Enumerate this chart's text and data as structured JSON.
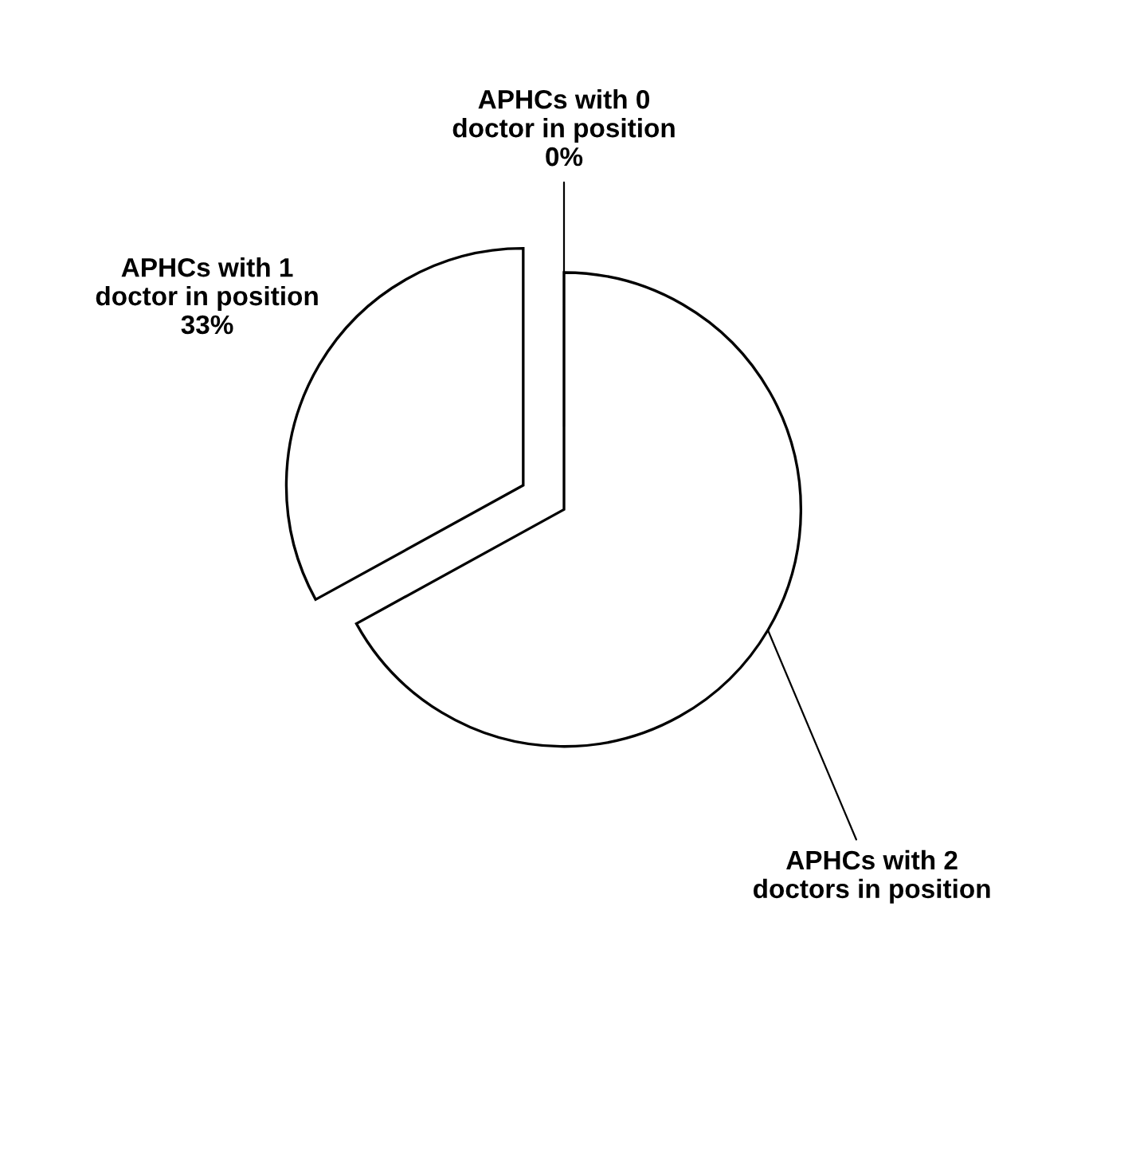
{
  "chart_data": {
    "type": "pie",
    "categories": [
      "APHCs with 0\ndoctor in position",
      "APHCs with 1\ndoctor in position",
      "APHCs with 2\ndoctors in position"
    ],
    "values": [
      0,
      33,
      67
    ],
    "value_labels": [
      "0%",
      "33%",
      null
    ],
    "colors": [
      "#ffffff",
      "#ffffff",
      "#ffffff"
    ]
  }
}
